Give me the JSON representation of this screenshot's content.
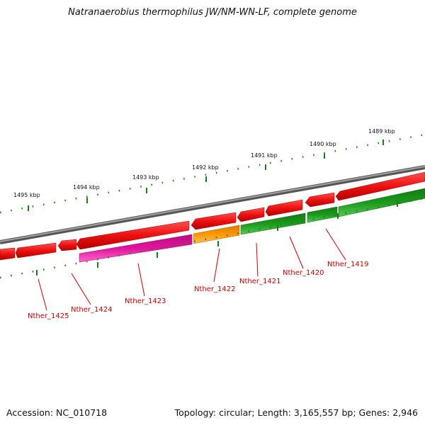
{
  "title": "Natranaerobius thermophilus JW/NM-WN-LF, complete genome",
  "footer": {
    "accession": "Accession: NC_010718",
    "summary": "Topology: circular; Length: 3,165,557 bp; Genes: 2,946"
  },
  "colors": {
    "backbone": "#808080",
    "red": "#ee1111",
    "pink": "#e0149c",
    "orange": "#ff9900",
    "green": "#1a9a1a",
    "light_green": "#33cc33",
    "tick": "#1d7a1d",
    "label": "#cc0000"
  },
  "ruler": [
    {
      "label": "1489 kbp"
    },
    {
      "label": "1490 kbp"
    },
    {
      "label": "1491 kbp"
    },
    {
      "label": "1492 kbp"
    },
    {
      "label": "1493 kbp"
    },
    {
      "label": "1494 kbp"
    },
    {
      "label": "1495 kbp"
    }
  ],
  "genes": [
    {
      "label": "Nther_1419"
    },
    {
      "label": "Nther_1420"
    },
    {
      "label": "Nther_1421"
    },
    {
      "label": "Nther_1422"
    },
    {
      "label": "Nther_1423"
    },
    {
      "label": "Nther_1424"
    },
    {
      "label": "Nther_1425"
    }
  ]
}
